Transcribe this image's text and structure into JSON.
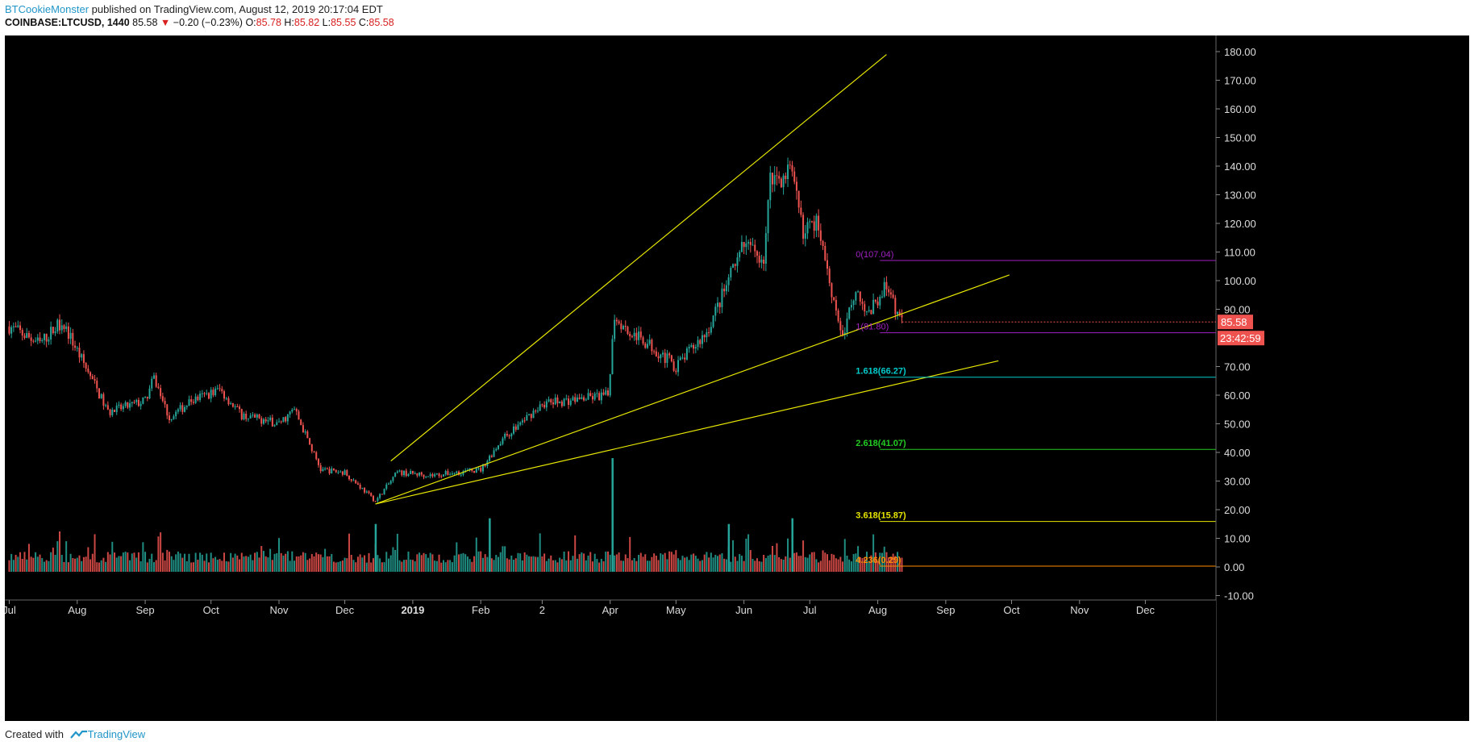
{
  "header": {
    "author": "BTCookieMonster",
    "published_text": "published on TradingView.com, August 12, 2019 20:17:04 EDT",
    "symbol": "COINBASE:LTCUSD, 1440",
    "last": "85.58",
    "change_arrow": "▼",
    "change": "−0.20 (−0.23%)",
    "o_label": "O:",
    "o_value": "85.78",
    "h_label": "H:",
    "h_value": "85.82",
    "l_label": "L:",
    "l_value": "85.55",
    "c_label": "C:",
    "c_value": "85.58"
  },
  "footer": {
    "created_with": "Created with",
    "brand": "TradingView",
    "logo_icon": "tradingview-logo-icon"
  },
  "colors": {
    "background": "#000000",
    "up": "#26a69a",
    "down": "#ef5350",
    "trendline": "#e6e600",
    "fib_0": "#a020c0",
    "fib_1": "#a020c0",
    "fib_1618": "#00cccc",
    "fib_2618": "#22cc22",
    "fib_3618": "#e6e600",
    "fib_4236": "#ff8c00",
    "price_label": "#ef5350",
    "axis_text": "#dddddd"
  },
  "chart_data": {
    "type": "candlestick",
    "symbol": "COINBASE:LTCUSD",
    "ylim": [
      -10,
      185
    ],
    "y_ticks": [
      "180.00",
      "170.00",
      "160.00",
      "150.00",
      "140.00",
      "130.00",
      "120.00",
      "110.00",
      "100.00",
      "90.00",
      "70.00",
      "60.00",
      "50.00",
      "40.00",
      "30.00",
      "20.00",
      "10.00",
      "0.00",
      "-10.00"
    ],
    "x_ticks": [
      "Jul",
      "Aug",
      "Sep",
      "Oct",
      "Nov",
      "Dec",
      "2019",
      "Feb",
      "2",
      "Apr",
      "May",
      "Jun",
      "Jul",
      "Aug",
      "Sep",
      "Oct",
      "Nov",
      "Dec"
    ],
    "last_price": "85.58",
    "countdown": "23:42:59",
    "price_path": [
      {
        "date": "2018-07-01",
        "close": 84
      },
      {
        "date": "2018-07-15",
        "close": 78
      },
      {
        "date": "2018-07-25",
        "close": 86
      },
      {
        "date": "2018-08-10",
        "close": 62
      },
      {
        "date": "2018-08-15",
        "close": 54
      },
      {
        "date": "2018-09-01",
        "close": 58
      },
      {
        "date": "2018-09-05",
        "close": 66
      },
      {
        "date": "2018-09-12",
        "close": 52
      },
      {
        "date": "2018-09-22",
        "close": 58
      },
      {
        "date": "2018-10-05",
        "close": 62
      },
      {
        "date": "2018-10-15",
        "close": 53
      },
      {
        "date": "2018-11-01",
        "close": 50
      },
      {
        "date": "2018-11-08",
        "close": 55
      },
      {
        "date": "2018-11-20",
        "close": 34
      },
      {
        "date": "2018-12-01",
        "close": 33
      },
      {
        "date": "2018-12-15",
        "close": 23
      },
      {
        "date": "2018-12-25",
        "close": 33
      },
      {
        "date": "2019-01-10",
        "close": 32
      },
      {
        "date": "2019-02-01",
        "close": 34
      },
      {
        "date": "2019-02-10",
        "close": 44
      },
      {
        "date": "2019-03-01",
        "close": 57
      },
      {
        "date": "2019-03-31",
        "close": 60
      },
      {
        "date": "2019-04-03",
        "close": 88
      },
      {
        "date": "2019-04-10",
        "close": 82
      },
      {
        "date": "2019-04-20",
        "close": 77
      },
      {
        "date": "2019-05-01",
        "close": 70
      },
      {
        "date": "2019-05-15",
        "close": 82
      },
      {
        "date": "2019-05-25",
        "close": 100
      },
      {
        "date": "2019-06-01",
        "close": 112
      },
      {
        "date": "2019-06-10",
        "close": 108
      },
      {
        "date": "2019-06-13",
        "close": 135
      },
      {
        "date": "2019-06-22",
        "close": 138
      },
      {
        "date": "2019-06-28",
        "close": 118
      },
      {
        "date": "2019-07-05",
        "close": 120
      },
      {
        "date": "2019-07-10",
        "close": 100
      },
      {
        "date": "2019-07-16",
        "close": 80
      },
      {
        "date": "2019-07-22",
        "close": 98
      },
      {
        "date": "2019-07-28",
        "close": 88
      },
      {
        "date": "2019-08-04",
        "close": 98
      },
      {
        "date": "2019-08-12",
        "close": 85.58
      }
    ],
    "volume_spikes": [
      {
        "date": "2019-04-02",
        "value": 38
      },
      {
        "date": "2019-02-05",
        "value": 17
      },
      {
        "date": "2019-06-23",
        "value": 17
      },
      {
        "date": "2018-12-15",
        "value": 15
      },
      {
        "date": "2019-05-25",
        "value": 15
      }
    ],
    "trendlines": [
      {
        "from": {
          "date": "2018-12-22",
          "price": 37
        },
        "to": {
          "date": "2019-08-05",
          "price": 179
        }
      },
      {
        "from": {
          "date": "2018-12-15",
          "price": 22
        },
        "to": {
          "date": "2019-09-30",
          "price": 102
        }
      },
      {
        "from": {
          "date": "2018-12-15",
          "price": 22
        },
        "to": {
          "date": "2019-09-25",
          "price": 72
        }
      }
    ],
    "fib_levels": [
      {
        "ratio": "0",
        "price": "107.04",
        "label": "0(107.04)"
      },
      {
        "ratio": "1",
        "price": "81.80",
        "label": "1(81.80)"
      },
      {
        "ratio": "1.618",
        "price": "66.27",
        "label": "1.618(66.27)"
      },
      {
        "ratio": "2.618",
        "price": "41.07",
        "label": "2.618(41.07)"
      },
      {
        "ratio": "3.618",
        "price": "15.87",
        "label": "3.618(15.87)"
      },
      {
        "ratio": "4.236",
        "price": "0.29",
        "label": "4.236(0.29)"
      }
    ]
  }
}
